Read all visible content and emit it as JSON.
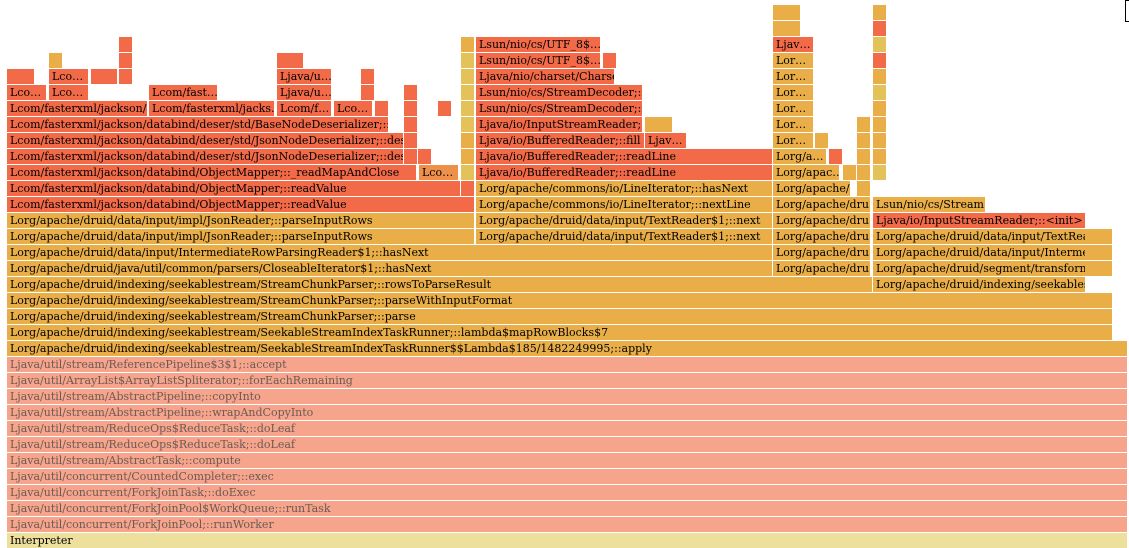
{
  "colors": {
    "red": "#f26a47",
    "orange": "#ee8f4a",
    "amber": "#e9ae48",
    "yellow": "#e4c25a",
    "salmon": "#f7a48c",
    "interp": "#eddf9c"
  },
  "frames": [
    {
      "id": "f1",
      "label": "Interpreter",
      "c": "interp"
    },
    {
      "id": "f2",
      "label": "Ljava/util/concurrent/ForkJoinPool;::runWorker",
      "c": "salmon",
      "dim": true
    },
    {
      "id": "f3",
      "label": "Ljava/util/concurrent/ForkJoinPool$WorkQueue;::runTask",
      "c": "salmon",
      "dim": true
    },
    {
      "id": "f4",
      "label": "Ljava/util/concurrent/ForkJoinTask;::doExec",
      "c": "salmon",
      "dim": true
    },
    {
      "id": "f5",
      "label": "Ljava/util/concurrent/CountedCompleter;::exec",
      "c": "salmon",
      "dim": true
    },
    {
      "id": "f6",
      "label": "Ljava/util/stream/AbstractTask;::compute",
      "c": "salmon",
      "dim": true
    },
    {
      "id": "f7",
      "label": "Ljava/util/stream/ReduceOps$ReduceTask;::doLeaf",
      "c": "salmon",
      "dim": true
    },
    {
      "id": "f8",
      "label": "Ljava/util/stream/ReduceOps$ReduceTask;::doLeaf",
      "c": "salmon",
      "dim": true
    },
    {
      "id": "f9",
      "label": "Ljava/util/stream/AbstractPipeline;::wrapAndCopyInto",
      "c": "salmon",
      "dim": true
    },
    {
      "id": "f10",
      "label": "Ljava/util/stream/AbstractPipeline;::copyInto",
      "c": "salmon",
      "dim": true
    },
    {
      "id": "f11",
      "label": "Ljava/util/ArrayList$ArrayListSpliterator;::forEachRemaining",
      "c": "salmon",
      "dim": true
    },
    {
      "id": "f12",
      "label": "Ljava/util/stream/ReferencePipeline$3$1;::accept",
      "c": "salmon",
      "dim": true
    },
    {
      "id": "f13",
      "label": "Lorg/apache/druid/indexing/seekablestream/SeekableStreamIndexTaskRunner$$Lambda$185/1482249995;::apply",
      "c": "amber"
    },
    {
      "id": "f14",
      "label": "Lorg/apache/druid/indexing/seekablestream/SeekableStreamIndexTaskRunner;::lambda$mapRowBlocks$7",
      "c": "amber"
    },
    {
      "id": "f15",
      "label": "Lorg/apache/druid/indexing/seekablestream/StreamChunkParser;::parse",
      "c": "amber"
    },
    {
      "id": "f16",
      "label": "Lorg/apache/druid/indexing/seekablestream/StreamChunkParser;::parseWithInputFormat",
      "c": "amber"
    },
    {
      "id": "f17",
      "label": "Lorg/apache/druid/indexing/seekablestream/StreamChunkParser;::rowsToParseResult",
      "c": "amber"
    },
    {
      "id": "f18",
      "label": "Lorg/apache/druid/indexing/seekablestr…",
      "c": "amber"
    },
    {
      "id": "f19",
      "label": "Lorg/apache/druid/java/util/common/parsers/CloseableIterator$1;::hasNext",
      "c": "amber"
    },
    {
      "id": "f20",
      "label": "Lorg/apache/dru…",
      "c": "amber"
    },
    {
      "id": "f21",
      "label": "Lorg/apache/druid/segment/transform/T…",
      "c": "amber"
    },
    {
      "id": "f22",
      "label": "",
      "c": "amber"
    },
    {
      "id": "f23",
      "label": "Lorg/apache/druid/data/input/IntermediateRowParsingReader$1;::hasNext",
      "c": "amber"
    },
    {
      "id": "f24",
      "label": "Lorg/apache/dru…",
      "c": "amber"
    },
    {
      "id": "f25",
      "label": "Lorg/apache/druid/data/input/Intermedi…",
      "c": "amber"
    },
    {
      "id": "f26",
      "label": "",
      "c": "amber"
    },
    {
      "id": "f27",
      "label": "Lorg/apache/druid/data/input/impl/JsonReader;::parseInputRows",
      "c": "amber"
    },
    {
      "id": "f28",
      "label": "Lorg/apache/druid/data/input/TextReader$1;::next",
      "c": "amber"
    },
    {
      "id": "f29",
      "label": "Lorg/apache/dru…",
      "c": "amber"
    },
    {
      "id": "f30",
      "label": "Lorg/apache/druid/data/input/TextRead…",
      "c": "amber"
    },
    {
      "id": "f31",
      "label": "",
      "c": "amber"
    },
    {
      "id": "f32",
      "label": "Lorg/apache/druid/data/input/impl/JsonReader;::parseInputRows",
      "c": "amber"
    },
    {
      "id": "f33",
      "label": "Lorg/apache/druid/data/input/TextReader$1;::next",
      "c": "amber"
    },
    {
      "id": "f34",
      "label": "Lorg/apache/dru…",
      "c": "amber"
    },
    {
      "id": "f35",
      "label": "Ljava/io/InputStreamReader;::<init>",
      "c": "red"
    },
    {
      "id": "f36",
      "label": "Lcom/fasterxml/jackson/databind/ObjectMapper;::readValue",
      "c": "red"
    },
    {
      "id": "f37",
      "label": "Lorg/apache/commons/io/LineIterator;::nextLine",
      "c": "amber"
    },
    {
      "id": "f38",
      "label": "Lorg/apache/dru…",
      "c": "amber"
    },
    {
      "id": "f39",
      "label": "Lsun/nio/cs/Stream…",
      "c": "amber"
    },
    {
      "id": "f40",
      "label": "Lcom/fasterxml/jackson/databind/ObjectMapper;::readValue",
      "c": "red"
    },
    {
      "id": "f41",
      "label": "",
      "c": "red"
    },
    {
      "id": "f42",
      "label": "Lorg/apache/commons/io/LineIterator;::hasNext",
      "c": "amber"
    },
    {
      "id": "f43",
      "label": "Lorg/apache/…",
      "c": "amber"
    },
    {
      "id": "f44",
      "label": "",
      "c": "amber"
    },
    {
      "id": "f45",
      "label": "Lcom/fasterxml/jackson/databind/ObjectMapper;::_readMapAndClose",
      "c": "red"
    },
    {
      "id": "f46",
      "label": "Lco…",
      "c": "orange"
    },
    {
      "id": "f47",
      "label": "",
      "c": "yellow"
    },
    {
      "id": "f48",
      "label": "Ljava/io/BufferedReader;::readLine",
      "c": "red"
    },
    {
      "id": "f49",
      "label": "Lorg/apac…",
      "c": "amber"
    },
    {
      "id": "f50",
      "label": "",
      "c": "amber"
    },
    {
      "id": "f51",
      "label": "",
      "c": "amber"
    },
    {
      "id": "f52",
      "label": "",
      "c": "yellow"
    },
    {
      "id": "f53",
      "label": "Lcom/fasterxml/jackson/databind/deser/std/JsonNodeDeserializer;::deserialize",
      "c": "red"
    },
    {
      "id": "f54",
      "label": "",
      "c": "red"
    },
    {
      "id": "f55",
      "label": "",
      "c": "red"
    },
    {
      "id": "f56",
      "label": "",
      "c": "amber"
    },
    {
      "id": "f57",
      "label": "Ljava/io/BufferedReader;::readLine",
      "c": "red"
    },
    {
      "id": "f58",
      "label": "Lorg/a…",
      "c": "amber"
    },
    {
      "id": "f59",
      "label": "",
      "c": "red"
    },
    {
      "id": "f60",
      "label": "",
      "c": "amber"
    },
    {
      "id": "f61",
      "label": "",
      "c": "amber"
    },
    {
      "id": "f62",
      "label": "Lcom/fasterxml/jackson/databind/deser/std/JsonNodeDeserializer;::deserialize",
      "c": "red"
    },
    {
      "id": "f63",
      "label": "",
      "c": "red"
    },
    {
      "id": "f64",
      "label": "",
      "c": "amber"
    },
    {
      "id": "f65",
      "label": "Ljava/io/BufferedReader;::fill",
      "c": "red"
    },
    {
      "id": "f66",
      "label": "Ljav…",
      "c": "red"
    },
    {
      "id": "f67",
      "label": "Lor…",
      "c": "amber"
    },
    {
      "id": "f68",
      "label": "",
      "c": "amber"
    },
    {
      "id": "f69",
      "label": "",
      "c": "amber"
    },
    {
      "id": "f70",
      "label": "",
      "c": "amber"
    },
    {
      "id": "f71",
      "label": "Lcom/fasterxml/jackson/databind/deser/std/BaseNodeDeserializer;::deseria…",
      "c": "red"
    },
    {
      "id": "f72",
      "label": "",
      "c": "red"
    },
    {
      "id": "f73",
      "label": "",
      "c": "yellow"
    },
    {
      "id": "f74",
      "label": "Ljava/io/InputStreamReader;::…",
      "c": "red"
    },
    {
      "id": "f75",
      "label": "",
      "c": "amber"
    },
    {
      "id": "f76",
      "label": "Lor…",
      "c": "amber"
    },
    {
      "id": "f77",
      "label": "",
      "c": "amber"
    },
    {
      "id": "f78",
      "label": "",
      "c": "amber"
    },
    {
      "id": "f79",
      "label": "Lcom/fasterxml/jackson/…",
      "c": "red"
    },
    {
      "id": "f80",
      "label": "Lcom/fasterxml/jacks…",
      "c": "red"
    },
    {
      "id": "f81",
      "label": "Lcom/f…",
      "c": "red"
    },
    {
      "id": "f82",
      "label": "Lco…",
      "c": "red"
    },
    {
      "id": "f83",
      "label": "",
      "c": "red"
    },
    {
      "id": "f84",
      "label": "",
      "c": "red"
    },
    {
      "id": "f85",
      "label": "",
      "c": "red"
    },
    {
      "id": "f86",
      "label": "",
      "c": "yellow"
    },
    {
      "id": "f87",
      "label": "Lsun/nio/cs/StreamDecoder;::r…",
      "c": "red"
    },
    {
      "id": "f88",
      "label": "Lor…",
      "c": "amber"
    },
    {
      "id": "f89",
      "label": "",
      "c": "amber"
    },
    {
      "id": "f90",
      "label": "Lco…",
      "c": "red"
    },
    {
      "id": "f91",
      "label": "Lco…",
      "c": "red"
    },
    {
      "id": "f92",
      "label": "Lcom/fast…",
      "c": "red"
    },
    {
      "id": "f93",
      "label": "Ljava/u…",
      "c": "red"
    },
    {
      "id": "f94",
      "label": "",
      "c": "red"
    },
    {
      "id": "f95",
      "label": "",
      "c": "red"
    },
    {
      "id": "f96",
      "label": "",
      "c": "yellow"
    },
    {
      "id": "f97",
      "label": "Lsun/nio/cs/StreamDecoder;::i…",
      "c": "red"
    },
    {
      "id": "f98",
      "label": "Lor…",
      "c": "amber"
    },
    {
      "id": "f99",
      "label": "",
      "c": "yellow"
    },
    {
      "id": "f100",
      "label": "",
      "c": "red"
    },
    {
      "id": "f101",
      "label": "Lco…",
      "c": "red"
    },
    {
      "id": "f102",
      "label": "",
      "c": "red"
    },
    {
      "id": "f103",
      "label": "",
      "c": "red"
    },
    {
      "id": "f104",
      "label": "Ljava/u…",
      "c": "red"
    },
    {
      "id": "f105",
      "label": "",
      "c": "red"
    },
    {
      "id": "f106",
      "label": "",
      "c": "yellow"
    },
    {
      "id": "f107",
      "label": "Ljava/nio/charset/Charse…",
      "c": "red"
    },
    {
      "id": "f108",
      "label": "Lor…",
      "c": "amber"
    },
    {
      "id": "f109",
      "label": "",
      "c": "amber"
    },
    {
      "id": "f110",
      "label": "",
      "c": "amber"
    },
    {
      "id": "f111",
      "label": "",
      "c": "red"
    },
    {
      "id": "f112",
      "label": "",
      "c": "red"
    },
    {
      "id": "f113",
      "label": "",
      "c": "yellow"
    },
    {
      "id": "f114",
      "label": "Lsun/nio/cs/UTF_8$…",
      "c": "red"
    },
    {
      "id": "f115",
      "label": "",
      "c": "red"
    },
    {
      "id": "f116",
      "label": "Lor…",
      "c": "amber"
    },
    {
      "id": "f117",
      "label": "",
      "c": "red"
    },
    {
      "id": "f118",
      "label": "",
      "c": "red"
    },
    {
      "id": "f119",
      "label": "",
      "c": "amber"
    },
    {
      "id": "f120",
      "label": "Lsun/nio/cs/UTF_8$…",
      "c": "red"
    },
    {
      "id": "f121",
      "label": "Ljav…",
      "c": "red"
    },
    {
      "id": "f122",
      "label": "",
      "c": "yellow"
    },
    {
      "id": "f123",
      "label": "",
      "c": "amber"
    },
    {
      "id": "f124",
      "label": "",
      "c": "red"
    },
    {
      "id": "f125",
      "label": "",
      "c": "amber"
    },
    {
      "id": "f126",
      "label": "",
      "c": "amber"
    }
  ]
}
